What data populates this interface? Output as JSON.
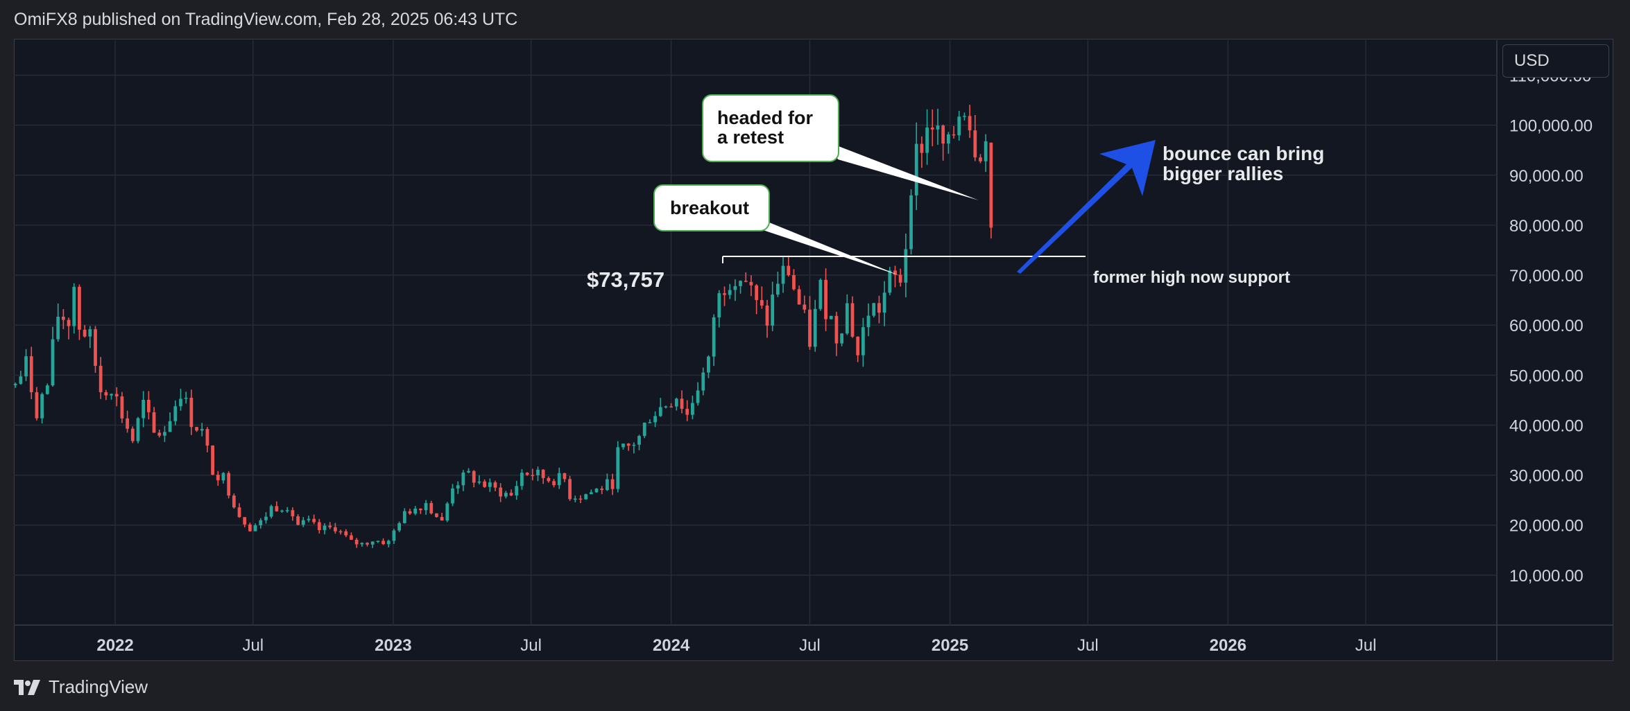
{
  "header": {
    "published_line": "OmiFX8 published on TradingView.com, Feb 28, 2025 06:43 UTC"
  },
  "axis": {
    "currency": "USD"
  },
  "footer": {
    "brand": "TradingView"
  },
  "colors": {
    "up": "#26a69a",
    "down": "#ef5350",
    "arrow": "#1e50e6",
    "callout_border": "#4caf50"
  },
  "annotations": {
    "price_label": "$73,757",
    "support_label": "former high now support",
    "breakout": "breakout",
    "retest_line1": "headed for",
    "retest_line2": "a retest",
    "bounce_line1": "bounce can bring",
    "bounce_line2": "bigger rallies"
  },
  "chart_data": {
    "type": "candlestick",
    "title": "",
    "xlabel": "",
    "ylabel": "",
    "y_ticks": [
      10000,
      20000,
      30000,
      40000,
      50000,
      60000,
      70000,
      80000,
      90000,
      100000,
      110000
    ],
    "y_tick_labels": [
      "10,000.00",
      "20,000.00",
      "30,000.00",
      "40,000.00",
      "50,000.00",
      "60,000.00",
      "70,000.00",
      "80,000.00",
      "90,000.00",
      "100,000.00",
      "110,000.00"
    ],
    "ylim": [
      0,
      117000
    ],
    "x_ticks": [
      "2022-01-01",
      "2022-07-01",
      "2023-01-01",
      "2023-07-01",
      "2024-01-01",
      "2024-07-01",
      "2025-01-01",
      "2025-07-01",
      "2026-01-01",
      "2026-07-01"
    ],
    "x_tick_labels": [
      "2022",
      "Jul",
      "2023",
      "Jul",
      "2024",
      "Jul",
      "2025",
      "Jul",
      "2026",
      "Jul"
    ],
    "x_tick_bold": [
      true,
      false,
      true,
      false,
      true,
      false,
      true,
      false,
      true,
      false
    ],
    "xlim": [
      "2021-08-21",
      "2026-12-20"
    ],
    "grid": true,
    "support_level": 73757,
    "ohlc_points": [
      [
        "2021-08-23",
        48000
      ],
      [
        "2021-09-06",
        52000
      ],
      [
        "2021-09-20",
        43000
      ],
      [
        "2021-10-04",
        48000
      ],
      [
        "2021-10-18",
        62000
      ],
      [
        "2021-11-01",
        61000
      ],
      [
        "2021-11-08",
        68000
      ],
      [
        "2021-11-15",
        60000
      ],
      [
        "2021-11-29",
        57000
      ],
      [
        "2021-12-13",
        47000
      ],
      [
        "2021-12-27",
        48000
      ],
      [
        "2022-01-10",
        42000
      ],
      [
        "2022-01-24",
        37000
      ],
      [
        "2022-02-07",
        44000
      ],
      [
        "2022-02-21",
        38000
      ],
      [
        "2022-03-07",
        39000
      ],
      [
        "2022-03-28",
        47000
      ],
      [
        "2022-04-11",
        41000
      ],
      [
        "2022-04-25",
        38500
      ],
      [
        "2022-05-09",
        31000
      ],
      [
        "2022-05-23",
        29500
      ],
      [
        "2022-06-13",
        22000
      ],
      [
        "2022-06-27",
        19500
      ],
      [
        "2022-07-11",
        20500
      ],
      [
        "2022-07-25",
        23500
      ],
      [
        "2022-08-15",
        24000
      ],
      [
        "2022-08-29",
        20000
      ],
      [
        "2022-09-12",
        20500
      ],
      [
        "2022-09-26",
        19000
      ],
      [
        "2022-10-17",
        19500
      ],
      [
        "2022-11-07",
        16500
      ],
      [
        "2022-11-21",
        16200
      ],
      [
        "2022-12-05",
        17000
      ],
      [
        "2022-12-26",
        16500
      ],
      [
        "2023-01-09",
        21000
      ],
      [
        "2023-01-23",
        23000
      ],
      [
        "2023-02-13",
        24500
      ],
      [
        "2023-03-06",
        20500
      ],
      [
        "2023-03-20",
        28000
      ],
      [
        "2023-04-10",
        30000
      ],
      [
        "2023-04-24",
        28500
      ],
      [
        "2023-05-15",
        27000
      ],
      [
        "2023-06-05",
        25800
      ],
      [
        "2023-06-19",
        30400
      ],
      [
        "2023-07-03",
        30300
      ],
      [
        "2023-07-24",
        29200
      ],
      [
        "2023-08-14",
        29100
      ],
      [
        "2023-08-21",
        26000
      ],
      [
        "2023-09-04",
        25800
      ],
      [
        "2023-09-25",
        27000
      ],
      [
        "2023-10-16",
        28500
      ],
      [
        "2023-10-23",
        34500
      ],
      [
        "2023-11-06",
        35500
      ],
      [
        "2023-11-20",
        37500
      ],
      [
        "2023-12-04",
        42000
      ],
      [
        "2023-12-18",
        43500
      ],
      [
        "2024-01-08",
        46000
      ],
      [
        "2024-01-22",
        42000
      ],
      [
        "2024-02-05",
        48000
      ],
      [
        "2024-02-19",
        52000
      ],
      [
        "2024-02-26",
        62000
      ],
      [
        "2024-03-11",
        68500
      ],
      [
        "2024-03-25",
        71000
      ],
      [
        "2024-04-08",
        69000
      ],
      [
        "2024-04-22",
        63500
      ],
      [
        "2024-05-06",
        61000
      ],
      [
        "2024-05-20",
        69000
      ],
      [
        "2024-06-03",
        71000
      ],
      [
        "2024-06-17",
        64000
      ],
      [
        "2024-07-01",
        57000
      ],
      [
        "2024-07-15",
        67000
      ],
      [
        "2024-08-05",
        58000
      ],
      [
        "2024-08-19",
        64000
      ],
      [
        "2024-09-02",
        54000
      ],
      [
        "2024-09-16",
        63000
      ],
      [
        "2024-09-30",
        63500
      ],
      [
        "2024-10-14",
        68500
      ],
      [
        "2024-10-28",
        69500
      ],
      [
        "2024-11-04",
        76500
      ],
      [
        "2024-11-11",
        90000
      ],
      [
        "2024-11-25",
        97000
      ],
      [
        "2024-12-09",
        101000
      ],
      [
        "2024-12-16",
        97000
      ],
      [
        "2024-12-30",
        94000
      ],
      [
        "2025-01-13",
        103000
      ],
      [
        "2025-01-20",
        105000
      ],
      [
        "2025-02-03",
        97000
      ],
      [
        "2025-02-17",
        96000
      ],
      [
        "2025-02-24",
        79500
      ]
    ]
  }
}
